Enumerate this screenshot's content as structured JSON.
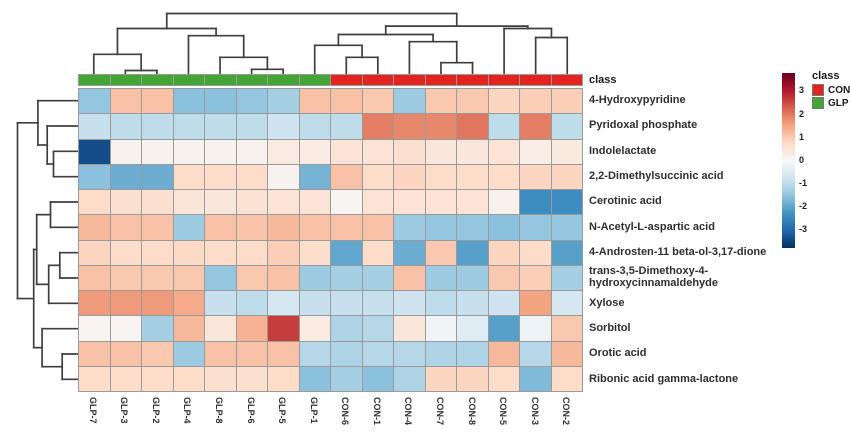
{
  "figure": {
    "annotation_label": "class",
    "legend": {
      "title": "class",
      "entries": [
        {
          "label": "CON",
          "color": "#e2231f"
        },
        {
          "label": "GLP",
          "color": "#43a536"
        }
      ]
    }
  },
  "chart_data": {
    "type": "heatmap",
    "title": "",
    "columns": [
      "GLP-7",
      "GLP-3",
      "GLP-2",
      "GLP-4",
      "GLP-8",
      "GLP-6",
      "GLP-5",
      "GLP-1",
      "CON-6",
      "CON-1",
      "CON-4",
      "CON-7",
      "CON-8",
      "CON-5",
      "CON-3",
      "CON-2"
    ],
    "rows": [
      "4-Hydroxypyridine",
      "Pyridoxal phosphate",
      "Indolelactate",
      "2,2-Dimethylsuccinic acid",
      "Cerotinic acid",
      "N-Acetyl-L-aspartic acid",
      "4-Androsten-11 beta-ol-3,17-dione",
      "trans-3,5-Dimethoxy-4-hydroxycinnamaldehyde",
      "Xylose",
      "Sorbitol",
      "Orotic acid",
      "Ribonic acid gamma-lactone"
    ],
    "col_classes": [
      "GLP",
      "GLP",
      "GLP",
      "GLP",
      "GLP",
      "GLP",
      "GLP",
      "GLP",
      "CON",
      "CON",
      "CON",
      "CON",
      "CON",
      "CON",
      "CON",
      "CON"
    ],
    "class_colors": {
      "CON": "#e2231f",
      "GLP": "#43a536"
    },
    "matrix": [
      [
        -1.5,
        1.1,
        1.1,
        -1.6,
        -1.6,
        -1.5,
        -1.3,
        1.1,
        1.1,
        1.0,
        -1.4,
        1.0,
        1.0,
        0.8,
        0.9,
        0.9
      ],
      [
        -0.9,
        -1.0,
        -1.0,
        -1.0,
        -1.0,
        -1.0,
        -0.8,
        -1.0,
        -1.0,
        1.9,
        1.8,
        1.8,
        2.0,
        -1.0,
        1.9,
        -1.0
      ],
      [
        -3.4,
        0.1,
        0.1,
        0.1,
        0.1,
        0.1,
        0.3,
        0.3,
        0.5,
        0.5,
        0.6,
        0.4,
        0.4,
        0.5,
        0.25,
        0.35
      ],
      [
        -1.6,
        -1.9,
        -1.9,
        0.7,
        0.7,
        0.7,
        0.1,
        -1.8,
        1.1,
        0.7,
        0.8,
        0.7,
        0.7,
        0.7,
        0.8,
        0.8
      ],
      [
        0.7,
        0.6,
        0.6,
        0.45,
        0.4,
        0.55,
        0.5,
        0.5,
        0.05,
        0.5,
        0.5,
        0.5,
        0.5,
        0.15,
        -2.4,
        -2.4
      ],
      [
        1.2,
        1.1,
        1.1,
        -1.4,
        1.1,
        1.05,
        1.2,
        1.1,
        1.1,
        1.1,
        -1.4,
        -1.5,
        -1.5,
        -1.6,
        -1.5,
        -1.5
      ],
      [
        0.8,
        0.7,
        0.7,
        0.75,
        0.7,
        0.7,
        0.9,
        0.65,
        -2.0,
        0.7,
        -1.9,
        1.0,
        -2.1,
        0.8,
        0.7,
        -2.1
      ],
      [
        1.1,
        1.0,
        1.0,
        1.0,
        -1.5,
        1.0,
        1.1,
        -1.4,
        -1.3,
        -1.3,
        1.1,
        -1.4,
        -1.4,
        1.0,
        0.9,
        -1.3
      ],
      [
        1.6,
        1.6,
        1.6,
        1.4,
        -0.9,
        -1.0,
        -0.7,
        -0.9,
        -0.9,
        -0.9,
        -0.8,
        -1.0,
        -0.9,
        -0.8,
        1.5,
        -0.7
      ],
      [
        0.05,
        0.05,
        -1.3,
        1.2,
        0.4,
        1.3,
        2.6,
        0.3,
        -1.2,
        -1.1,
        0.4,
        -0.15,
        -0.5,
        -2.1,
        -0.25,
        1.0
      ],
      [
        1.1,
        1.1,
        1.0,
        -1.4,
        1.1,
        1.1,
        1.1,
        -1.1,
        -1.2,
        -1.1,
        -1.1,
        -1.2,
        -1.2,
        1.2,
        -1.1,
        1.2
      ],
      [
        0.7,
        0.7,
        0.7,
        0.7,
        0.6,
        0.6,
        0.7,
        -1.6,
        -1.3,
        -1.6,
        -1.2,
        0.8,
        0.8,
        0.7,
        -1.7,
        0.7
      ]
    ],
    "colorbar": {
      "ticks": [
        3,
        2,
        1,
        0,
        -1,
        -2,
        -3
      ],
      "domain": [
        -3.8,
        3.75
      ],
      "palette": [
        "#053061",
        "#2166AC",
        "#4393C3",
        "#92C5DE",
        "#D1E5F0",
        "#F7F7F7",
        "#FDDBC7",
        "#F4A582",
        "#D6604D",
        "#B2182B",
        "#67001F"
      ]
    },
    "col_dendrogram": {
      "h": 1.0,
      "c": [
        {
          "h": 0.75,
          "c": [
            {
              "h": 0.32,
              "c": [
                0,
                {
                  "h": 0.05,
                  "c": [
                    1,
                    2
                  ]
                }
              ]
            },
            {
              "h": 0.63,
              "c": [
                3,
                {
                  "h": 0.27,
                  "c": [
                    4,
                    {
                      "h": 0.07,
                      "c": [
                        5,
                        6
                      ]
                    }
                  ]
                }
              ]
            }
          ]
        },
        {
          "h": 0.79,
          "c": [
            {
              "h": 0.65,
              "c": [
                {
                  "h": 0.47,
                  "c": [
                    7,
                    {
                      "h": 0.27,
                      "c": [
                        8,
                        9
                      ]
                    }
                  ]
                },
                {
                  "h": 0.53,
                  "c": [
                    10,
                    {
                      "h": 0.18,
                      "c": [
                        11,
                        12
                      ]
                    }
                  ]
                }
              ]
            },
            {
              "h": 0.75,
              "c": [
                13,
                {
                  "h": 0.6,
                  "c": [
                    14,
                    15
                  ]
                }
              ]
            }
          ]
        }
      ]
    },
    "row_dendrogram": {
      "h": 1.0,
      "c": [
        {
          "h": 0.66,
          "c": [
            0,
            {
              "h": 0.505,
              "c": [
                1,
                {
                  "h": 0.4,
                  "c": [
                    2,
                    3
                  ]
                }
              ]
            }
          ]
        },
        {
          "h": 0.73,
          "c": [
            {
              "h": 0.68,
              "c": [
                {
                  "h": 0.45,
                  "c": [
                    4,
                    5
                  ]
                },
                {
                  "h": 0.48,
                  "c": [
                    {
                      "h": 0.295,
                      "c": [
                        6,
                        7
                      ]
                    },
                    8
                  ]
                }
              ]
            },
            {
              "h": 0.59,
              "c": [
                9,
                {
                  "h": 0.255,
                  "c": [
                    10,
                    11
                  ]
                }
              ]
            }
          ]
        }
      ]
    },
    "legend_position": "right"
  }
}
